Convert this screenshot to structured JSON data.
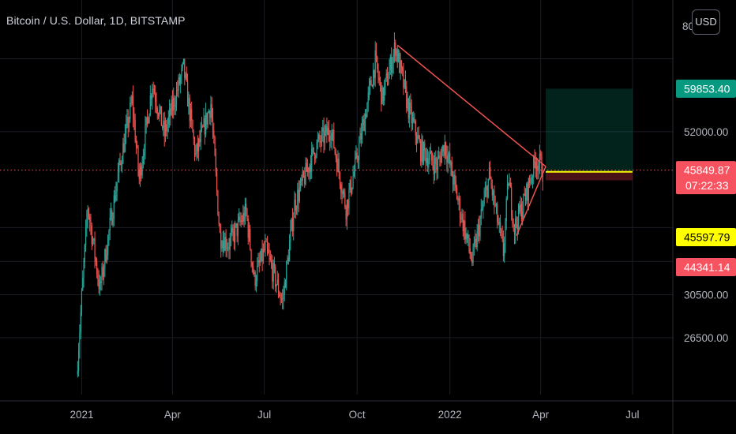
{
  "title": "Bitcoin / U.S. Dollar, 1D, BITSTAMP",
  "currency_button": "USD",
  "top_tick_label": "80",
  "chart_data": {
    "type": "candlestick",
    "symbol": "BTCUSD",
    "exchange": "BITSTAMP",
    "interval": "1D",
    "y_scale": "log",
    "ylim": [
      22000,
      80000
    ],
    "y_ticks": [
      {
        "value": 52000,
        "label": "52000.00"
      },
      {
        "value": 30500,
        "label": "30500.00"
      },
      {
        "value": 26500,
        "label": "26500.00"
      }
    ],
    "x_ticks": [
      {
        "date": "2021-01-01",
        "label": "2021"
      },
      {
        "date": "2021-04-01",
        "label": "Apr"
      },
      {
        "date": "2021-07-01",
        "label": "Jul"
      },
      {
        "date": "2021-10-01",
        "label": "Oct"
      },
      {
        "date": "2022-01-01",
        "label": "2022"
      },
      {
        "date": "2022-04-01",
        "label": "Apr"
      },
      {
        "date": "2022-07-01",
        "label": "Jul"
      }
    ],
    "xlim": [
      "2020-10-12",
      "2022-08-10"
    ],
    "bull_color": "#26a69a",
    "bear_color": "#ef5350",
    "price_path": [
      [
        "2020-12-28",
        23500
      ],
      [
        "2021-01-08",
        40800
      ],
      [
        "2021-01-20",
        31000
      ],
      [
        "2021-02-08",
        46000
      ],
      [
        "2021-02-21",
        57500
      ],
      [
        "2021-02-28",
        44500
      ],
      [
        "2021-03-13",
        61000
      ],
      [
        "2021-03-25",
        51500
      ],
      [
        "2021-04-13",
        64000
      ],
      [
        "2021-04-25",
        48000
      ],
      [
        "2021-05-10",
        57000
      ],
      [
        "2021-05-19",
        37000
      ],
      [
        "2021-05-28",
        36000
      ],
      [
        "2021-06-14",
        40000
      ],
      [
        "2021-06-22",
        32000
      ],
      [
        "2021-07-03",
        35500
      ],
      [
        "2021-07-20",
        29800
      ],
      [
        "2021-08-01",
        41000
      ],
      [
        "2021-08-22",
        49500
      ],
      [
        "2021-09-06",
        52500
      ],
      [
        "2021-09-21",
        40500
      ],
      [
        "2021-10-01",
        47000
      ],
      [
        "2021-10-20",
        65500
      ],
      [
        "2021-10-27",
        58000
      ],
      [
        "2021-11-09",
        68900
      ],
      [
        "2021-11-22",
        56000
      ],
      [
        "2021-12-04",
        49000
      ],
      [
        "2021-12-20",
        46500
      ],
      [
        "2021-12-28",
        50000
      ],
      [
        "2022-01-10",
        41500
      ],
      [
        "2022-01-24",
        34000
      ],
      [
        "2022-02-10",
        45000
      ],
      [
        "2022-02-24",
        35000
      ],
      [
        "2022-03-01",
        44500
      ],
      [
        "2022-03-07",
        38000
      ],
      [
        "2022-03-18",
        42000
      ],
      [
        "2022-03-28",
        47500
      ],
      [
        "2022-04-03",
        46500
      ],
      [
        "2022-04-04",
        45849.87
      ]
    ],
    "trendlines": [
      {
        "from": [
          "2021-11-10",
          69000
        ],
        "to": [
          "2022-04-06",
          46400
        ],
        "color": "#ef5350"
      },
      {
        "from": [
          "2022-03-08",
          37000
        ],
        "to": [
          "2022-04-06",
          46400
        ],
        "color": "#ef5350"
      }
    ],
    "long_position": {
      "start": "2022-04-06",
      "end": "2022-07-01",
      "entry": 45597.79,
      "target": 59853.4,
      "stop": 44341.14
    },
    "last_price": 45849.87,
    "countdown": "07:22:33",
    "price_tags": [
      {
        "label": "59853.40",
        "value": 59853.4,
        "bg": "#089981",
        "fg": "#ffffff"
      },
      {
        "label": "45849.87",
        "value": 45849.87,
        "bg": "#f7525f",
        "fg": "#ffffff",
        "sub": "07:22:33"
      },
      {
        "label": "45597.79",
        "value": 45597.79,
        "bg": "#ffff00",
        "fg": "#000000"
      },
      {
        "label": "44341.14",
        "value": 44341.14,
        "bg": "#f7525f",
        "fg": "#ffffff"
      }
    ]
  }
}
